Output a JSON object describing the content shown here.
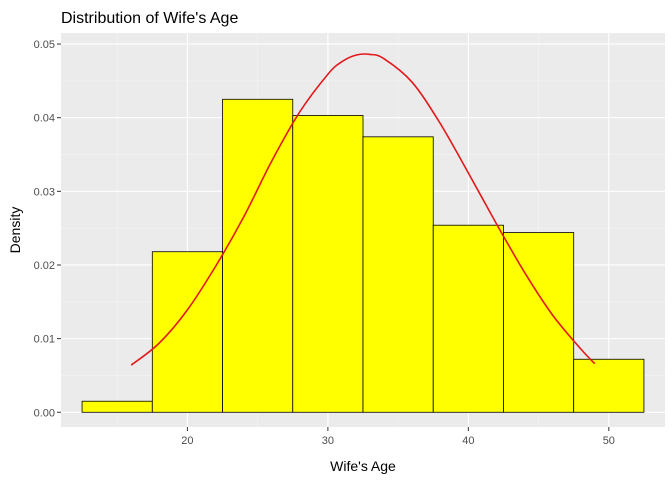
{
  "chart_data": {
    "type": "histogram",
    "title": "Distribution of Wife's Age",
    "xlabel": "Wife's Age",
    "ylabel": "Density",
    "xlim": [
      11,
      54
    ],
    "ylim": [
      -0.002,
      0.0515
    ],
    "x_ticks": [
      20,
      30,
      40,
      50
    ],
    "x_tick_labels": [
      "20",
      "30",
      "40",
      "50"
    ],
    "y_ticks": [
      0.0,
      0.01,
      0.02,
      0.03,
      0.04,
      0.05
    ],
    "y_tick_labels": [
      "0.00",
      "0.01",
      "0.02",
      "0.03",
      "0.04",
      "0.05"
    ],
    "grid": true,
    "bins": [
      {
        "x0": 12.5,
        "x1": 17.5,
        "density": 0.0015
      },
      {
        "x0": 17.5,
        "x1": 22.5,
        "density": 0.0218
      },
      {
        "x0": 22.5,
        "x1": 27.5,
        "density": 0.0425
      },
      {
        "x0": 27.5,
        "x1": 32.5,
        "density": 0.0403
      },
      {
        "x0": 32.5,
        "x1": 37.5,
        "density": 0.0374
      },
      {
        "x0": 37.5,
        "x1": 42.5,
        "density": 0.0254
      },
      {
        "x0": 42.5,
        "x1": 47.5,
        "density": 0.0244
      },
      {
        "x0": 47.5,
        "x1": 52.5,
        "density": 0.0072
      }
    ],
    "density_curve": {
      "x": [
        16,
        18,
        20,
        22,
        24,
        26,
        28,
        30,
        31,
        32,
        33,
        34,
        36,
        38,
        40,
        42,
        44,
        46,
        48,
        49
      ],
      "y": [
        0.0064,
        0.0094,
        0.0139,
        0.0198,
        0.0265,
        0.0341,
        0.0408,
        0.0459,
        0.0476,
        0.0485,
        0.0486,
        0.048,
        0.0448,
        0.0392,
        0.0325,
        0.0256,
        0.019,
        0.0132,
        0.0086,
        0.0066
      ]
    },
    "colors": {
      "bar_fill": "#ffff00",
      "bar_stroke": "#000000",
      "curve": "#e31a1c",
      "panel_bg": "#ebebeb",
      "grid_major": "#ffffff",
      "grid_minor": "#f5f5f5"
    }
  }
}
